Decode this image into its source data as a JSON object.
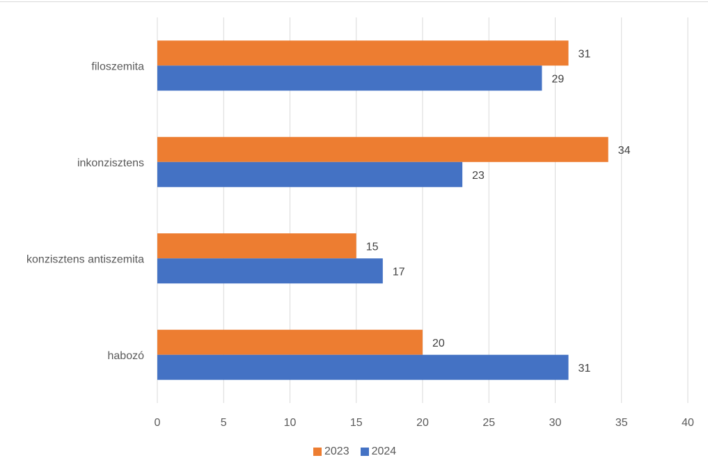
{
  "chart_data": {
    "type": "bar",
    "orientation": "horizontal",
    "title": "",
    "categories": [
      "filoszemita",
      "inkonzisztens",
      "konzisztens antiszemita",
      "habozó"
    ],
    "series": [
      {
        "name": "2023",
        "color": "#ED7D31",
        "values": [
          31,
          34,
          15,
          20
        ]
      },
      {
        "name": "2024",
        "color": "#4472C4",
        "values": [
          29,
          23,
          17,
          31
        ]
      }
    ],
    "xlim": [
      0,
      40
    ],
    "xticks": [
      "0",
      "5",
      "10",
      "15",
      "20",
      "25",
      "30",
      "35",
      "40"
    ],
    "grid": true,
    "legend_position": "bottom",
    "xlabel": "",
    "ylabel": ""
  }
}
